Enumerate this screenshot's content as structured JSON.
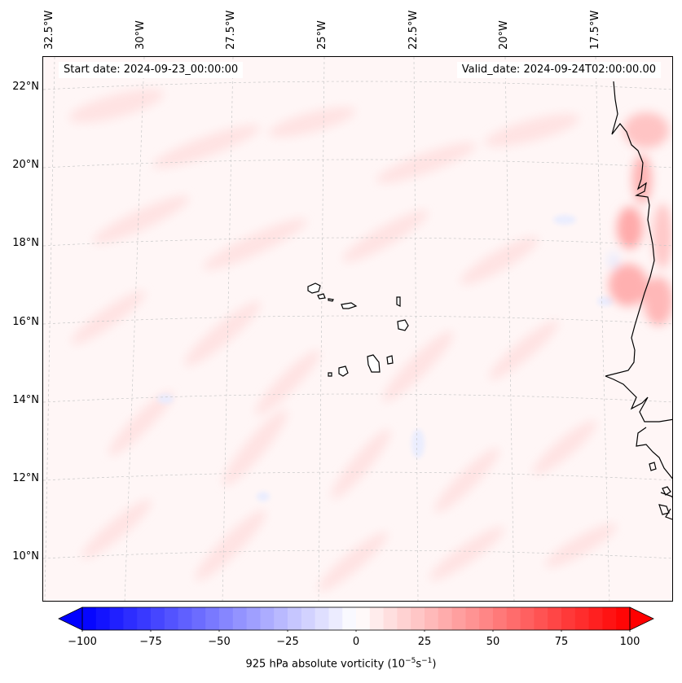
{
  "map": {
    "start_date": "Start date: 2024-09-23_00:00:00",
    "valid_date": "Valid_date: 2024-09-24T02:00:00.00",
    "projection": "lambert-conformal",
    "background_color": "#fff8f8",
    "coastline_color": "#000000",
    "gridline_style": "dashed-gray",
    "lon_labels": [
      "32.5°W",
      "30°W",
      "27.5°W",
      "25°W",
      "22.5°W",
      "20°W",
      "17.5°W"
    ],
    "lat_labels": [
      "22°N",
      "20°N",
      "18°N",
      "16°N",
      "14°N",
      "12°N",
      "10°N"
    ],
    "features": [
      "Cape Verde islands",
      "West African coast"
    ]
  },
  "colorbar": {
    "label_prefix": "925 hPa absolute vorticity (10",
    "label_exp1": "−5",
    "label_mid": "s",
    "label_exp2": "−1",
    "label_suffix": ")",
    "ticks": [
      "−100",
      "−75",
      "−50",
      "−25",
      "0",
      "25",
      "50",
      "75",
      "100"
    ],
    "range": [
      -100,
      100
    ],
    "colormap": "bwr",
    "low_color": "#0000ff",
    "mid_color": "#ffffff",
    "high_color": "#ff0000",
    "extend": "both"
  }
}
